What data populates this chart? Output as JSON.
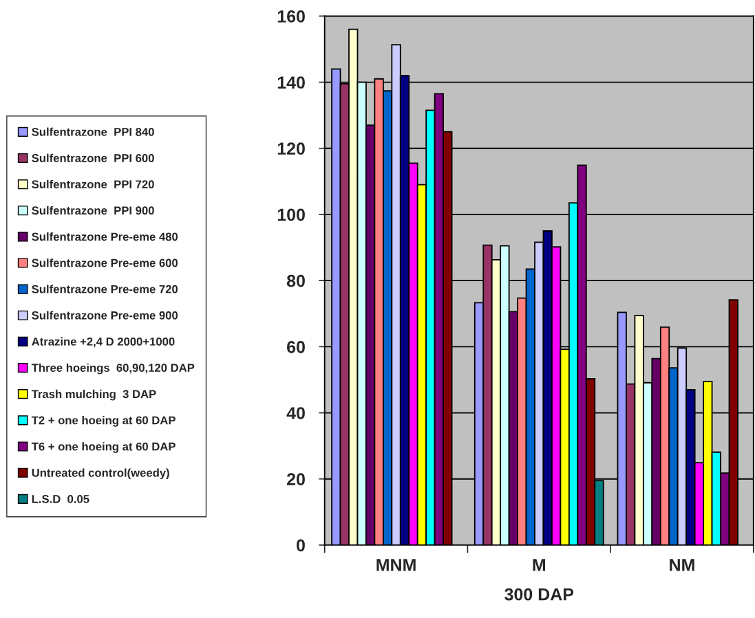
{
  "chart_data": {
    "type": "bar",
    "xlabel": "300 DAP",
    "categories": [
      "MNM",
      "M",
      "NM"
    ],
    "ylim": [
      0,
      160
    ],
    "yticks": [
      0,
      20,
      40,
      60,
      80,
      100,
      120,
      140,
      160
    ],
    "grid": "y",
    "legend": "left",
    "series": [
      {
        "name": "Sulfentrazone  PPI 840",
        "color": "#9999ff",
        "values": [
          144,
          73.3,
          70.4
        ]
      },
      {
        "name": "Sulfentrazone  PPI 600",
        "color": "#993366",
        "values": [
          139.5,
          90.7,
          48.7
        ]
      },
      {
        "name": "Sulfentrazone  PPI 720",
        "color": "#ffffcc",
        "values": [
          156,
          86.3,
          69.4
        ]
      },
      {
        "name": "Sulfentrazone  PPI 900",
        "color": "#ccffff",
        "values": [
          140,
          90.5,
          49.1
        ]
      },
      {
        "name": "Sulfentrazone Pre-eme 480",
        "color": "#660066",
        "values": [
          127,
          70.6,
          56.4
        ]
      },
      {
        "name": "Sulfentrazone Pre-eme 600",
        "color": "#ff8080",
        "values": [
          141,
          74.7,
          65.9
        ]
      },
      {
        "name": "Sulfentrazone Pre-eme 720",
        "color": "#0066cc",
        "values": [
          137.4,
          83.5,
          53.6
        ]
      },
      {
        "name": "Sulfentrazone Pre-eme 900",
        "color": "#ccccff",
        "values": [
          151.3,
          91.6,
          59.6
        ]
      },
      {
        "name": "Atrazine +2,4 D 2000+1000",
        "color": "#000080",
        "values": [
          142,
          95,
          47
        ]
      },
      {
        "name": "Three hoeings  60,90,120 DAP",
        "color": "#ff00ff",
        "values": [
          115.5,
          90.2,
          24.9
        ]
      },
      {
        "name": "Trash mulching  3 DAP",
        "color": "#ffff00",
        "values": [
          109,
          59.2,
          49.5
        ]
      },
      {
        "name": "T2 + one hoeing at 60 DAP",
        "color": "#00ffff",
        "values": [
          131.5,
          103.5,
          28.1
        ]
      },
      {
        "name": "T6 + one hoeing at 60 DAP",
        "color": "#800080",
        "values": [
          136.5,
          114.9,
          21.8
        ]
      },
      {
        "name": "Untreated control(weedy)",
        "color": "#800000",
        "values": [
          125,
          50.3,
          74.2
        ]
      },
      {
        "name": "L.S.D  0.05",
        "color": "#008080",
        "values": [
          null,
          19.5,
          null
        ]
      }
    ]
  }
}
